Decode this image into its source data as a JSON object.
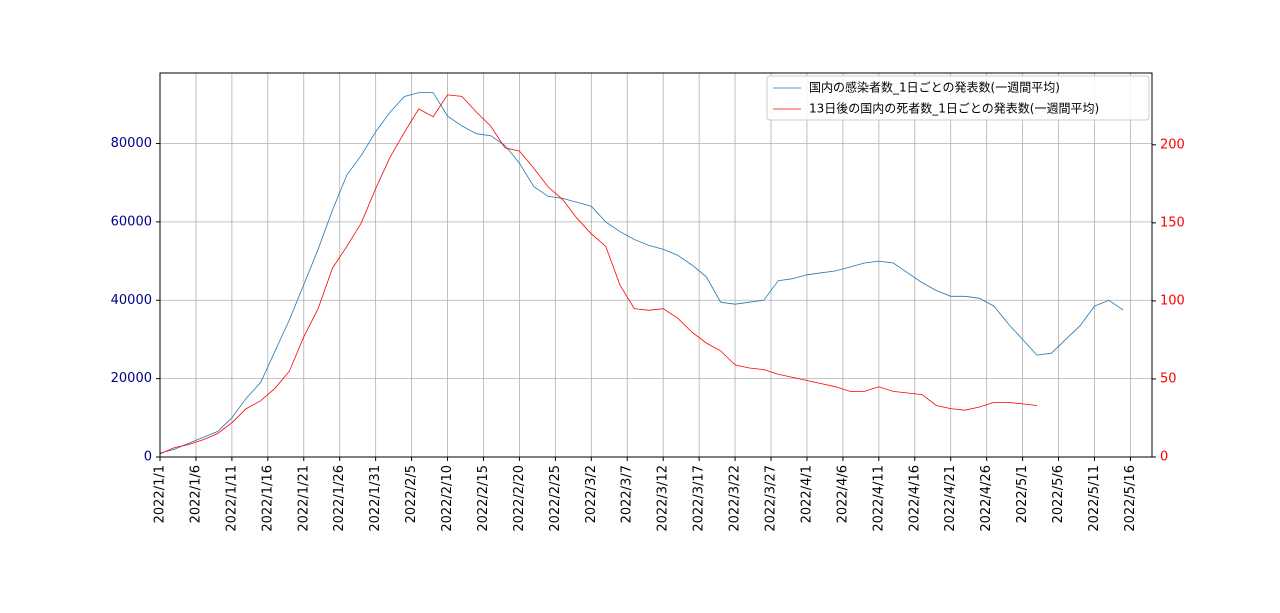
{
  "chart_data": {
    "type": "line",
    "x": [
      "2022/1/1",
      "2022/1/3",
      "2022/1/5",
      "2022/1/7",
      "2022/1/9",
      "2022/1/11",
      "2022/1/13",
      "2022/1/15",
      "2022/1/17",
      "2022/1/19",
      "2022/1/21",
      "2022/1/23",
      "2022/1/25",
      "2022/1/27",
      "2022/1/29",
      "2022/1/31",
      "2022/2/2",
      "2022/2/4",
      "2022/2/6",
      "2022/2/8",
      "2022/2/10",
      "2022/2/12",
      "2022/2/14",
      "2022/2/16",
      "2022/2/18",
      "2022/2/20",
      "2022/2/22",
      "2022/2/24",
      "2022/2/26",
      "2022/2/28",
      "2022/3/2",
      "2022/3/4",
      "2022/3/6",
      "2022/3/8",
      "2022/3/10",
      "2022/3/12",
      "2022/3/14",
      "2022/3/16",
      "2022/3/18",
      "2022/3/20",
      "2022/3/22",
      "2022/3/24",
      "2022/3/26",
      "2022/3/28",
      "2022/3/30",
      "2022/4/1",
      "2022/4/3",
      "2022/4/5",
      "2022/4/7",
      "2022/4/9",
      "2022/4/11",
      "2022/4/13",
      "2022/4/15",
      "2022/4/17",
      "2022/4/19",
      "2022/4/21",
      "2022/4/23",
      "2022/4/25",
      "2022/4/27",
      "2022/4/29",
      "2022/5/1",
      "2022/5/3",
      "2022/5/5",
      "2022/5/7",
      "2022/5/9",
      "2022/5/11",
      "2022/5/13",
      "2022/5/15"
    ],
    "series": [
      {
        "name": "国内の感染者数_1日ごとの発表数(一週間平均)",
        "color": "#1f77b4",
        "axis": "y",
        "values": [
          1000,
          2000,
          3500,
          5000,
          6500,
          10000,
          15000,
          19000,
          27000,
          35000,
          44000,
          53000,
          63000,
          72000,
          77000,
          83000,
          88000,
          92000,
          93000,
          93000,
          87000,
          84500,
          82500,
          82000,
          79500,
          75000,
          69000,
          66500,
          66000,
          65000,
          64000,
          60000,
          57500,
          55500,
          54000,
          53000,
          51500,
          49000,
          46000,
          39500,
          39000,
          39500,
          40000,
          45000,
          45500,
          46500,
          47000,
          47500,
          48500,
          49500,
          50000,
          49500,
          47000,
          44500,
          42500,
          41000,
          41000,
          40500,
          38500,
          34000,
          30000,
          26000,
          26500,
          30000,
          33500,
          38500,
          40000,
          37500
        ]
      },
      {
        "name": "13日後の国内の死者数_1日ごとの発表数(一週間平均)",
        "color": "#ff0000",
        "axis": "y2",
        "values": [
          2,
          6,
          8,
          11,
          15,
          22,
          31,
          36,
          44,
          55,
          77,
          95,
          121,
          135,
          150,
          172,
          192,
          208,
          223,
          218,
          232,
          231,
          221,
          212,
          198,
          196,
          185,
          173,
          165,
          153,
          143,
          135,
          110,
          95,
          94,
          95,
          89,
          80,
          73,
          68,
          59,
          57,
          56,
          53,
          51,
          49,
          47,
          45,
          42,
          42,
          45,
          42,
          41,
          40,
          33,
          31,
          30,
          32,
          35,
          35,
          34,
          33,
          null,
          null,
          null,
          null,
          null,
          null
        ]
      }
    ],
    "xlim": [
      "2022/1/1",
      "2022/5/19"
    ],
    "xticks": [
      "2022/1/1",
      "2022/1/6",
      "2022/1/11",
      "2022/1/16",
      "2022/1/21",
      "2022/1/26",
      "2022/1/31",
      "2022/2/5",
      "2022/2/10",
      "2022/2/15",
      "2022/2/20",
      "2022/2/25",
      "2022/3/2",
      "2022/3/7",
      "2022/3/12",
      "2022/3/17",
      "2022/3/22",
      "2022/3/27",
      "2022/4/1",
      "2022/4/6",
      "2022/4/11",
      "2022/4/16",
      "2022/4/21",
      "2022/4/26",
      "2022/5/1",
      "2022/5/6",
      "2022/5/11",
      "2022/5/16"
    ],
    "ylim": [
      0,
      98000
    ],
    "yticks": [
      0,
      20000,
      40000,
      60000,
      80000
    ],
    "ytick_color": "#00008b",
    "y2lim": [
      0,
      246
    ],
    "y2ticks": [
      0,
      50,
      100,
      150,
      200
    ],
    "y2tick_color": "#ff0000",
    "grid": true,
    "legend": "upper right"
  }
}
